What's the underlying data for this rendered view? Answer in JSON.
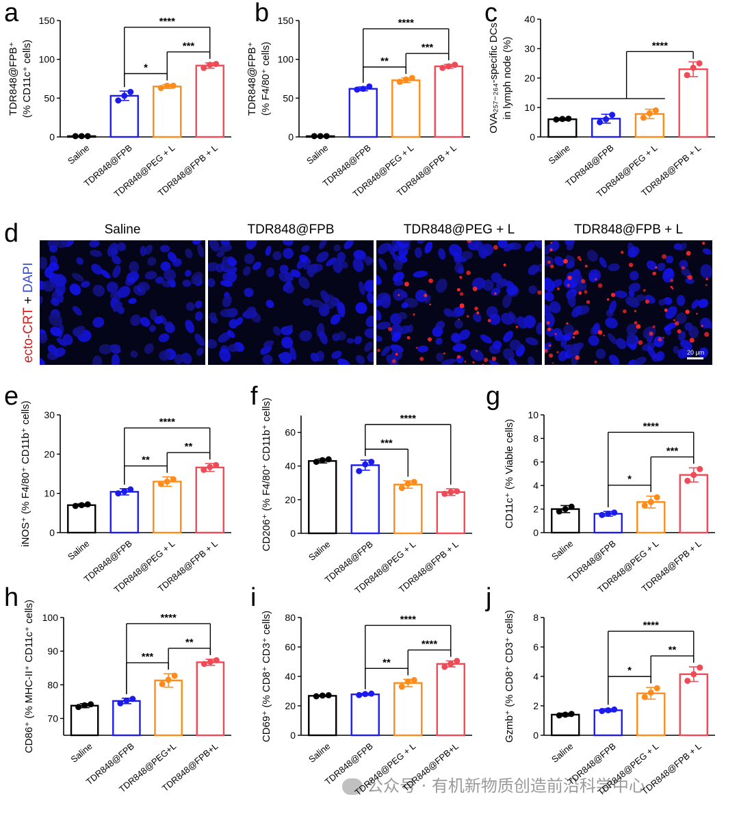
{
  "figure": {
    "colors": {
      "saline": "#000000",
      "fpb": "#1b1bef",
      "peg": "#ff8c1a",
      "fpbL": "#ef4a56"
    },
    "panel_d": {
      "label": "d",
      "titles": [
        "Saline",
        "TDR848@FPB",
        "TDR848@PEG + L",
        "TDR848@FPB + L"
      ],
      "side_label_red": "ecto-CRT",
      "side_label_plus": " + ",
      "side_label_blue": "DAPI",
      "scale_bar": "20 μm",
      "red_level": [
        0,
        0,
        0.55,
        1.0
      ]
    },
    "watermark": "公众号 · 有机新物质创造前沿科学中心"
  },
  "chart_data": [
    {
      "id": "a",
      "type": "bar",
      "panel_label": "a",
      "categories": [
        "Saline",
        "TDR848@FPB",
        "TDR848@PEG + L",
        "TDR848@FPB + L"
      ],
      "values": [
        1,
        53,
        65,
        92
      ],
      "errors": [
        0.5,
        6,
        2.5,
        3.5
      ],
      "points": [
        [
          1,
          1,
          1
        ],
        [
          47,
          53,
          58
        ],
        [
          63,
          66,
          66
        ],
        [
          89,
          93,
          94
        ]
      ],
      "ylabel_lines": [
        "TDR848@FPB⁺",
        "(% CD11c⁺ cells)"
      ],
      "ylim": [
        0,
        150
      ],
      "yticks": [
        0,
        50,
        100,
        150
      ],
      "significance": [
        {
          "from": 1,
          "to": 3,
          "label": "****"
        },
        {
          "from": 1,
          "to": 2,
          "label": "*"
        },
        {
          "from": 2,
          "to": 3,
          "label": "***"
        }
      ]
    },
    {
      "id": "b",
      "type": "bar",
      "panel_label": "b",
      "categories": [
        "Saline",
        "TDR848@FPB",
        "TDR848@PEG + L",
        "TDR848@FPB + L"
      ],
      "values": [
        1,
        62,
        73,
        91
      ],
      "errors": [
        0.5,
        2.5,
        3,
        2.5
      ],
      "points": [
        [
          1,
          1,
          1
        ],
        [
          61,
          62,
          65
        ],
        [
          71,
          74,
          76
        ],
        [
          89,
          91,
          93
        ]
      ],
      "ylabel_lines": [
        "TDR848@FPB⁺",
        "(% F4/80⁺ cells)"
      ],
      "ylim": [
        0,
        150
      ],
      "yticks": [
        0,
        50,
        100,
        150
      ],
      "significance": [
        {
          "from": 1,
          "to": 3,
          "label": "****"
        },
        {
          "from": 1,
          "to": 2,
          "label": "**"
        },
        {
          "from": 2,
          "to": 3,
          "label": "***"
        }
      ]
    },
    {
      "id": "c",
      "type": "bar",
      "panel_label": "c",
      "categories": [
        "Saline",
        "TDR848@FPB",
        "TDR848@PEG + L",
        "TDR848@FPB + L"
      ],
      "values": [
        6,
        6.2,
        7.8,
        23
      ],
      "errors": [
        0.4,
        1.5,
        1.6,
        2.5
      ],
      "points": [
        [
          5.9,
          6.1,
          6.2
        ],
        [
          5,
          6,
          7.5
        ],
        [
          6.5,
          8,
          9
        ],
        [
          21,
          23.5,
          25
        ]
      ],
      "ylabel_lines": [
        "OVA₂₅₇₋₂₆₄-specific DCs",
        "in lymph node (%)"
      ],
      "ylim": [
        0,
        40
      ],
      "yticks": [
        0,
        10,
        20,
        30,
        40
      ],
      "significance": [
        {
          "group_from": 0,
          "group_to": 2,
          "to": 3,
          "label": "****"
        }
      ]
    },
    {
      "id": "e",
      "type": "bar",
      "panel_label": "e",
      "categories": [
        "Saline",
        "TDR848@FPB",
        "TDR848@PEG + L",
        "TDR848@FPB + L"
      ],
      "values": [
        7,
        10.4,
        13,
        16.6
      ],
      "errors": [
        0.3,
        0.8,
        1.2,
        1.0
      ],
      "points": [
        [
          6.8,
          7,
          7.2
        ],
        [
          10,
          10.5,
          11
        ],
        [
          12.4,
          13,
          13.6
        ],
        [
          16,
          16.7,
          17.2
        ]
      ],
      "ylabel_lines": [
        "iNOS⁺ (% F4/80⁺ CD11b⁺ cells)"
      ],
      "ylim": [
        0,
        30
      ],
      "yticks": [
        0,
        10,
        20,
        30
      ],
      "significance": [
        {
          "from": 1,
          "to": 3,
          "label": "****"
        },
        {
          "from": 1,
          "to": 2,
          "label": "**"
        },
        {
          "from": 2,
          "to": 3,
          "label": "**"
        }
      ]
    },
    {
      "id": "f",
      "type": "bar",
      "panel_label": "f",
      "categories": [
        "Saline",
        "TDR848@FPB",
        "TDR848@PEG + L",
        "TDR848@FPB + L"
      ],
      "values": [
        43,
        40.5,
        29,
        24.5
      ],
      "errors": [
        1.2,
        3,
        2.2,
        2
      ],
      "points": [
        [
          42.5,
          43.5,
          44
        ],
        [
          37,
          41,
          42.5
        ],
        [
          27,
          29.5,
          30.5
        ],
        [
          23.5,
          24.5,
          25
        ]
      ],
      "ylabel_lines": [
        "CD206⁺ (% F4/80⁺ CD11b⁺ cells)"
      ],
      "ylim": [
        0,
        70
      ],
      "yticks": [
        0,
        20,
        40,
        60
      ],
      "significance": [
        {
          "from": 1,
          "to": 3,
          "label": "****"
        },
        {
          "from": 1,
          "to": 2,
          "label": "***"
        }
      ]
    },
    {
      "id": "g",
      "type": "bar",
      "panel_label": "g",
      "categories": [
        "Saline",
        "TDR848@FPB",
        "TDR848@PEG + L",
        "TDR848@FPB + L"
      ],
      "values": [
        2,
        1.6,
        2.6,
        4.9
      ],
      "errors": [
        0.3,
        0.2,
        0.5,
        0.6
      ],
      "points": [
        [
          1.8,
          2.0,
          2.2
        ],
        [
          1.5,
          1.6,
          1.7
        ],
        [
          2.3,
          2.6,
          3.0
        ],
        [
          4.4,
          4.9,
          5.4
        ]
      ],
      "ylabel_lines": [
        "CD11c⁺ (% Viable cells)"
      ],
      "ylim": [
        0,
        10
      ],
      "yticks": [
        0,
        2,
        4,
        6,
        8,
        10
      ],
      "significance": [
        {
          "from": 1,
          "to": 3,
          "label": "****"
        },
        {
          "from": 1,
          "to": 2,
          "label": "*"
        },
        {
          "from": 2,
          "to": 3,
          "label": "***"
        }
      ]
    },
    {
      "id": "h",
      "type": "bar",
      "panel_label": "h",
      "categories": [
        "Saline",
        "TDR848@FPB",
        "TDR848@PEG+L",
        "TDR848@FPB+L"
      ],
      "values": [
        73.8,
        75.2,
        81.3,
        86.7
      ],
      "errors": [
        0.6,
        0.8,
        2,
        0.9
      ],
      "points": [
        [
          73.4,
          73.9,
          74.2
        ],
        [
          74.5,
          75.3,
          75.8
        ],
        [
          80.2,
          81.5,
          82.7
        ],
        [
          86.2,
          86.8,
          87.3
        ]
      ],
      "ylabel_lines": [
        "CD86⁺ (% MHC-II⁺ CD11c⁺ cells)"
      ],
      "ylim": [
        65,
        100
      ],
      "yticks": [
        70,
        80,
        90,
        100
      ],
      "significance": [
        {
          "from": 1,
          "to": 3,
          "label": "****"
        },
        {
          "from": 1,
          "to": 2,
          "label": "***"
        },
        {
          "from": 2,
          "to": 3,
          "label": "**"
        }
      ]
    },
    {
      "id": "i",
      "type": "bar",
      "panel_label": "i",
      "categories": [
        "Saline",
        "TDR848@FPB",
        "TDR848@PEG + L",
        "TDR848@FPB+L"
      ],
      "values": [
        26.8,
        27.8,
        35.5,
        48.5
      ],
      "errors": [
        0.5,
        0.7,
        2.5,
        2
      ],
      "points": [
        [
          26.5,
          27,
          27.2
        ],
        [
          27.3,
          28,
          28.3
        ],
        [
          33,
          36.5,
          37.5
        ],
        [
          46.5,
          48.5,
          50.5
        ]
      ],
      "ylabel_lines": [
        "CD69⁺ (% CD8⁺ CD3⁺ cells)"
      ],
      "ylim": [
        0,
        80
      ],
      "yticks": [
        0,
        20,
        40,
        60,
        80
      ],
      "significance": [
        {
          "from": 1,
          "to": 3,
          "label": "****"
        },
        {
          "from": 1,
          "to": 2,
          "label": "**"
        },
        {
          "from": 2,
          "to": 3,
          "label": "****"
        }
      ]
    },
    {
      "id": "j",
      "type": "bar",
      "panel_label": "j",
      "categories": [
        "Saline",
        "TDR848@FPB",
        "TDR848@PEG + L",
        "TDR848@FPB + L"
      ],
      "values": [
        1.4,
        1.7,
        2.85,
        4.15
      ],
      "errors": [
        0.1,
        0.1,
        0.4,
        0.5
      ],
      "points": [
        [
          1.35,
          1.4,
          1.45
        ],
        [
          1.65,
          1.7,
          1.75
        ],
        [
          2.6,
          2.9,
          3.2
        ],
        [
          3.7,
          4.15,
          4.6
        ]
      ],
      "ylabel_lines": [
        "Gzmb⁺ (% CD8⁺ CD3⁺ cells)"
      ],
      "ylim": [
        0,
        8
      ],
      "yticks": [
        0,
        2,
        4,
        6,
        8
      ],
      "significance": [
        {
          "from": 1,
          "to": 3,
          "label": "****"
        },
        {
          "from": 1,
          "to": 2,
          "label": "*"
        },
        {
          "from": 2,
          "to": 3,
          "label": "**"
        }
      ]
    }
  ]
}
